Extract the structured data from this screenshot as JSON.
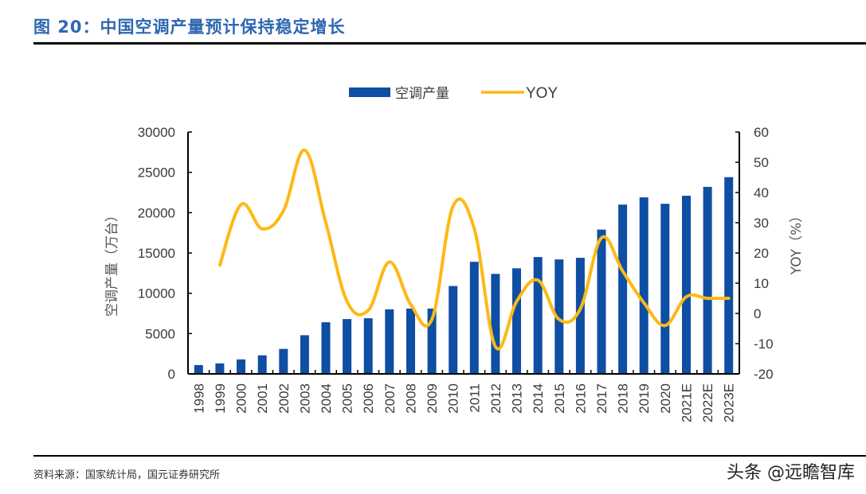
{
  "header": {
    "title": "图 20：中国空调产量预计保持稳定增长"
  },
  "footer": {
    "source": "资料来源：国家统计局，国元证券研究所",
    "watermark": "头条 @远瞻智库"
  },
  "chart_data": {
    "type": "bar+line",
    "title": "图 20：中国空调产量预计保持稳定增长",
    "categories": [
      "1998",
      "1999",
      "2000",
      "2001",
      "2002",
      "2003",
      "2004",
      "2005",
      "2006",
      "2007",
      "2008",
      "2009",
      "2010",
      "2011",
      "2012",
      "2013",
      "2014",
      "2015",
      "2016",
      "2017",
      "2018",
      "2019",
      "2020",
      "2021E",
      "2022E",
      "2023E"
    ],
    "series": [
      {
        "name": "空调产量",
        "type": "bar",
        "axis": "left",
        "color": "#0e4ea3",
        "values": [
          1100,
          1300,
          1800,
          2300,
          3100,
          4800,
          6400,
          6800,
          6900,
          8000,
          8100,
          8100,
          10900,
          13900,
          12400,
          13100,
          14500,
          14200,
          14400,
          17900,
          21000,
          21900,
          21100,
          22100,
          23200,
          24400
        ]
      },
      {
        "name": "YOY",
        "type": "line",
        "axis": "right",
        "color": "#fdb914",
        "values": [
          null,
          16,
          36,
          28,
          34,
          54,
          30,
          4,
          1,
          17,
          3,
          -2,
          35.5,
          28,
          -11,
          4,
          11,
          -2,
          1.5,
          25,
          14,
          3.5,
          -4,
          5.5,
          5,
          5
        ]
      }
    ],
    "y_left": {
      "label": "空调产量（万台）",
      "range": [
        0,
        30000
      ],
      "ticks": [
        "0",
        "5000",
        "10000",
        "15000",
        "20000",
        "25000",
        "30000"
      ],
      "tick_values": [
        0,
        5000,
        10000,
        15000,
        20000,
        25000,
        30000
      ]
    },
    "y_right": {
      "label": "YOY（%）",
      "range": [
        -20,
        60
      ],
      "ticks": [
        "-20",
        "-10",
        "0",
        "10",
        "20",
        "30",
        "40",
        "50",
        "60"
      ],
      "tick_values": [
        -20,
        -10,
        0,
        10,
        20,
        30,
        40,
        50,
        60
      ]
    },
    "xlabel": "",
    "grid": false,
    "legend": {
      "position": "top-center",
      "entries": [
        {
          "label": "空调产量",
          "color": "#0e4ea3",
          "kind": "bar"
        },
        {
          "label": "YOY",
          "color": "#fdb914",
          "kind": "line"
        }
      ]
    }
  }
}
